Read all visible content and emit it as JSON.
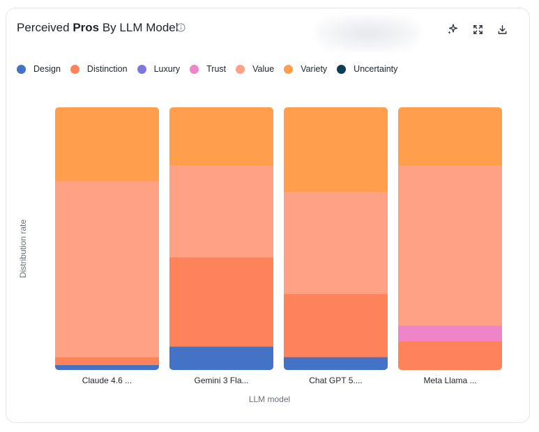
{
  "header": {
    "title_prefix": "Perceived ",
    "title_bold": "Pros",
    "title_suffix": " By LLM Model",
    "info_icon": "info-icon",
    "tools": [
      "sparkle-icon",
      "expand-icon",
      "download-icon"
    ]
  },
  "legend": [
    {
      "label": "Design",
      "color": "#4472c4"
    },
    {
      "label": "Distinction",
      "color": "#ff835a"
    },
    {
      "label": "Luxury",
      "color": "#7b78e0"
    },
    {
      "label": "Trust",
      "color": "#f084c9"
    },
    {
      "label": "Value",
      "color": "#ffa184"
    },
    {
      "label": "Variety",
      "color": "#ff9f4d"
    },
    {
      "label": "Uncertainty",
      "color": "#0e3d5a"
    }
  ],
  "chart_data": {
    "type": "bar",
    "stacked": true,
    "normalized": true,
    "categories": [
      "Claude 4.6 ...",
      "Gemini 3 Fla...",
      "Chat GPT 5....",
      "Meta Llama ..."
    ],
    "xlabel": "LLM model",
    "ylabel": "Distribution rate",
    "ylim": [
      0,
      1
    ],
    "grid": false,
    "legend_position": "top-left",
    "series": [
      {
        "name": "Design",
        "values": [
          0.02,
          0.09,
          0.05,
          0.0
        ]
      },
      {
        "name": "Distinction",
        "values": [
          0.03,
          0.34,
          0.24,
          0.11
        ]
      },
      {
        "name": "Luxury",
        "values": [
          0.0,
          0.0,
          0.0,
          0.0
        ]
      },
      {
        "name": "Trust",
        "values": [
          0.0,
          0.0,
          0.0,
          0.06
        ]
      },
      {
        "name": "Value",
        "values": [
          0.67,
          0.35,
          0.39,
          0.61
        ]
      },
      {
        "name": "Variety",
        "values": [
          0.28,
          0.22,
          0.32,
          0.22
        ]
      },
      {
        "name": "Uncertainty",
        "values": [
          0.0,
          0.0,
          0.0,
          0.0
        ]
      }
    ]
  }
}
